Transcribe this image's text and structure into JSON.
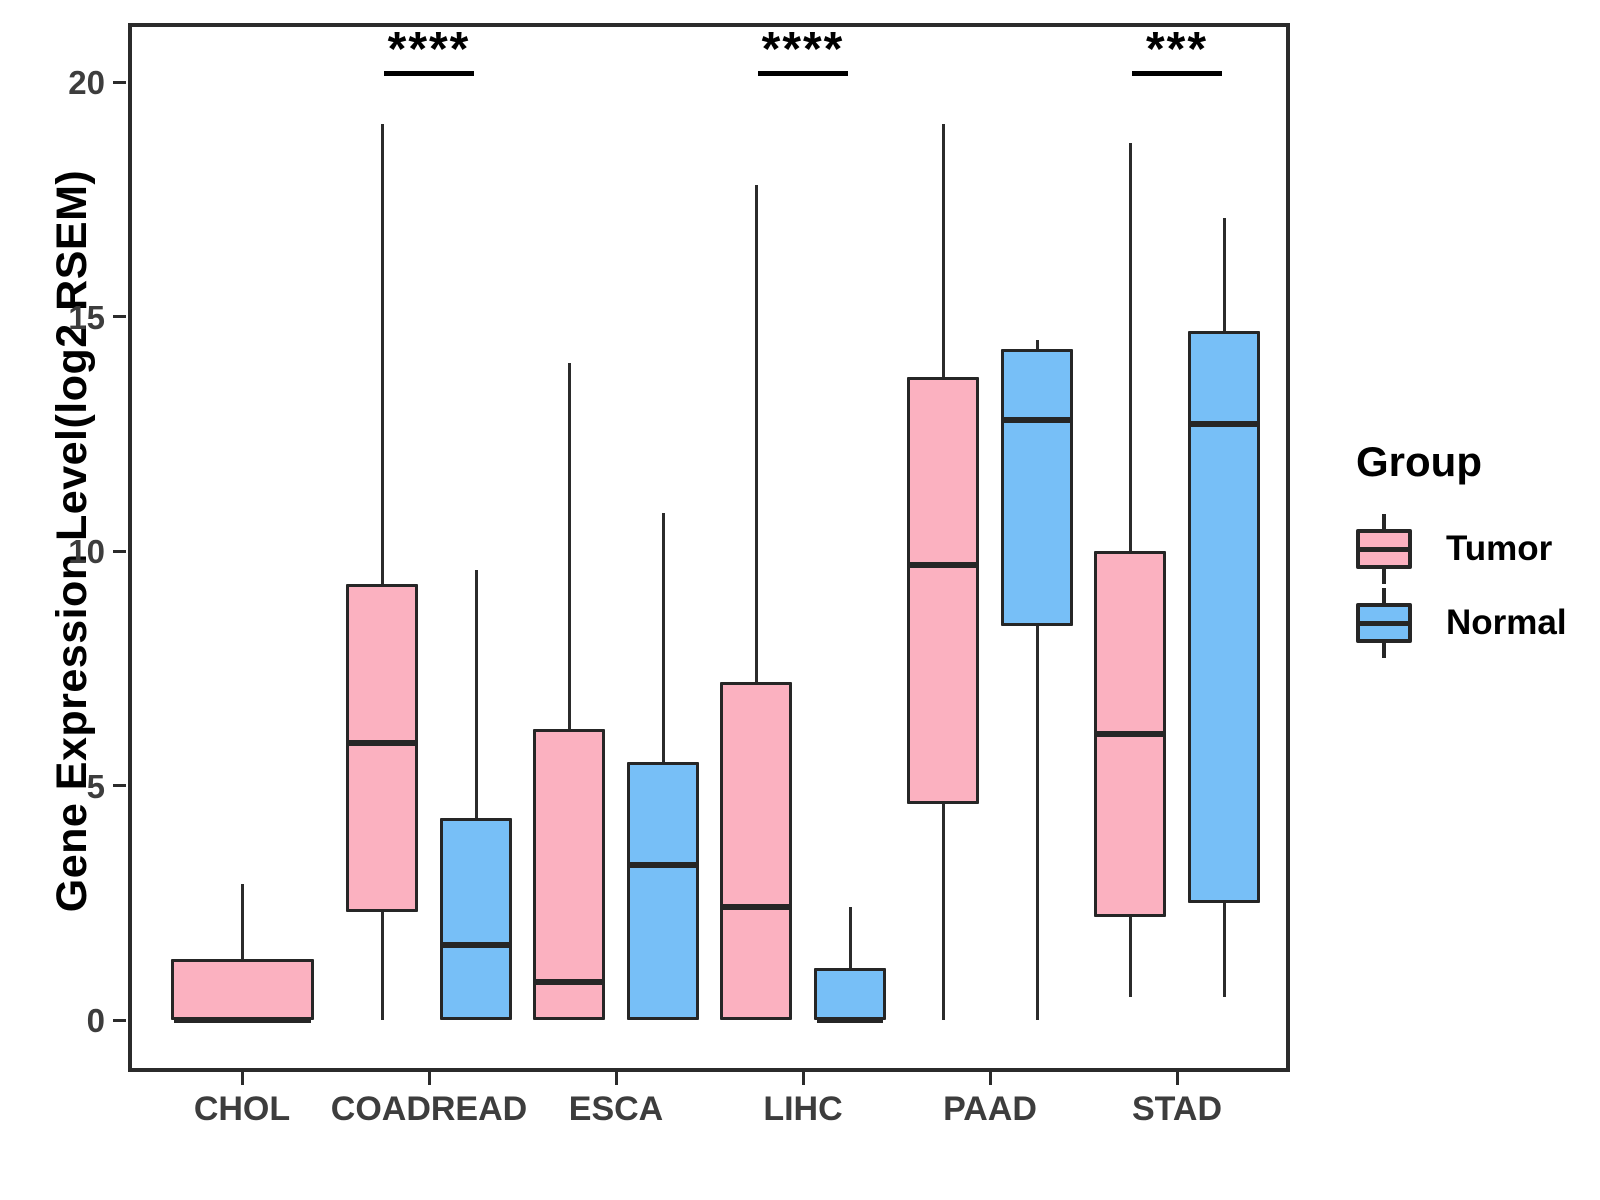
{
  "y_axis": {
    "label": "Gene Expression Level(log2 RSEM)",
    "ticks": [
      0,
      5,
      10,
      15,
      20
    ]
  },
  "x_axis": {
    "categories": [
      "CHOL",
      "COADREAD",
      "ESCA",
      "LIHC",
      "PAAD",
      "STAD"
    ]
  },
  "legend": {
    "title": "Group",
    "items": [
      {
        "label": "Tumor",
        "color": "#FBB1C0"
      },
      {
        "label": "Normal",
        "color": "#77BFF7"
      }
    ]
  },
  "chart_data": {
    "type": "boxplot",
    "title": "",
    "xlabel": "",
    "ylabel": "Gene Expression Level(log2 RSEM)",
    "ylim": [
      0,
      20
    ],
    "grid": false,
    "legend_position": "right",
    "categories": [
      "CHOL",
      "COADREAD",
      "ESCA",
      "LIHC",
      "PAAD",
      "STAD"
    ],
    "series": [
      {
        "name": "Tumor",
        "color": "#FBB1C0",
        "boxes": [
          {
            "category": "CHOL",
            "low": 0,
            "q1": 0,
            "median": 0,
            "q3": 1.3,
            "high": 2.9,
            "wide": true
          },
          {
            "category": "COADREAD",
            "low": 0,
            "q1": 2.3,
            "median": 5.9,
            "q3": 9.3,
            "high": 19.1
          },
          {
            "category": "ESCA",
            "low": 0,
            "q1": 0,
            "median": 0.8,
            "q3": 6.2,
            "high": 14.0
          },
          {
            "category": "LIHC",
            "low": 0,
            "q1": 0,
            "median": 2.4,
            "q3": 7.2,
            "high": 17.8
          },
          {
            "category": "PAAD",
            "low": 0,
            "q1": 4.6,
            "median": 9.7,
            "q3": 13.7,
            "high": 19.1
          },
          {
            "category": "STAD",
            "low": 0.5,
            "q1": 2.2,
            "median": 6.1,
            "q3": 10.0,
            "high": 18.7
          }
        ]
      },
      {
        "name": "Normal",
        "color": "#77BFF7",
        "boxes": [
          null,
          {
            "category": "COADREAD",
            "low": 0,
            "q1": 0,
            "median": 1.6,
            "q3": 4.3,
            "high": 9.6
          },
          {
            "category": "ESCA",
            "low": 0,
            "q1": 0,
            "median": 3.3,
            "q3": 5.5,
            "high": 10.8
          },
          {
            "category": "LIHC",
            "low": 0,
            "q1": 0,
            "median": 0,
            "q3": 1.1,
            "high": 2.4
          },
          {
            "category": "PAAD",
            "low": 0,
            "q1": 8.4,
            "median": 12.8,
            "q3": 14.3,
            "high": 14.5
          },
          {
            "category": "STAD",
            "low": 0.5,
            "q1": 2.5,
            "median": 12.7,
            "q3": 14.7,
            "high": 17.1
          }
        ]
      }
    ],
    "significance": [
      {
        "category": "COADREAD",
        "label": "****"
      },
      {
        "category": "LIHC",
        "label": "****"
      },
      {
        "category": "STAD",
        "label": "***"
      }
    ]
  }
}
